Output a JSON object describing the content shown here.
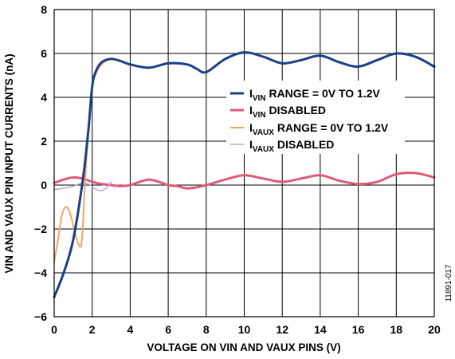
{
  "chart_data": {
    "type": "line",
    "xlabel": "VOLTAGE ON VIN AND VAUX PINS (V)",
    "ylabel": "VIN AND VAUX PIN INPUT CURRENTS (nA)",
    "xlim": [
      0,
      20
    ],
    "ylim": [
      -6,
      8
    ],
    "x_ticks": [
      "0",
      "2",
      "4",
      "6",
      "8",
      "10",
      "12",
      "14",
      "16",
      "18",
      "20"
    ],
    "y_ticks": [
      "−6",
      "−4",
      "−2",
      "0",
      "2",
      "4",
      "6",
      "8"
    ],
    "grid": true,
    "legend_position": "right",
    "figure_id": "11891-017",
    "series": [
      {
        "name": "I_VIN RANGE = 0V TO 1.2V",
        "legend": {
          "main": "I",
          "sub": "VIN",
          "rest": " RANGE = 0V TO 1.2V"
        },
        "color": "#1b3f86",
        "x": [
          0,
          0.5,
          1.0,
          1.5,
          1.8,
          2.0,
          2.2,
          2.5,
          3.0,
          3.5,
          4.0,
          5.0,
          6.0,
          7.0,
          7.5,
          8.0,
          9.0,
          10.0,
          11.0,
          12.0,
          13.0,
          14.0,
          15.0,
          16.0,
          17.0,
          18.0,
          19.0,
          20.0
        ],
        "y": [
          -5.1,
          -4.0,
          -2.5,
          0.2,
          2.5,
          4.5,
          5.2,
          5.6,
          5.75,
          5.65,
          5.5,
          5.35,
          5.55,
          5.5,
          5.3,
          5.15,
          5.75,
          6.05,
          5.85,
          5.55,
          5.7,
          5.9,
          5.6,
          5.4,
          5.7,
          6.0,
          5.85,
          5.4
        ]
      },
      {
        "name": "I_VIN DISABLED",
        "legend": {
          "main": "I",
          "sub": "VIN",
          "rest": " DISABLED"
        },
        "color": "#e05a78",
        "x": [
          0,
          0.5,
          1.0,
          1.5,
          2.0,
          2.5,
          3.0,
          3.5,
          4.0,
          4.5,
          5.0,
          5.5,
          6.0,
          6.5,
          7.0,
          7.5,
          8.0,
          9.0,
          10.0,
          11.0,
          12.0,
          13.0,
          14.0,
          15.0,
          16.0,
          17.0,
          18.0,
          19.0,
          20.0
        ],
        "y": [
          0.1,
          0.25,
          0.35,
          0.3,
          0.15,
          0.05,
          0.0,
          -0.05,
          0.0,
          0.15,
          0.25,
          0.15,
          0.0,
          -0.05,
          -0.15,
          -0.1,
          0.0,
          0.25,
          0.45,
          0.3,
          0.15,
          0.3,
          0.45,
          0.2,
          0.05,
          0.15,
          0.5,
          0.55,
          0.35
        ]
      },
      {
        "name": "I_VAUX RANGE = 0V TO 1.2V",
        "legend": {
          "main": "I",
          "sub": "VAUX",
          "rest": " RANGE = 0V TO 1.2V"
        },
        "color": "#f6a36c",
        "x": [
          0,
          0.2,
          0.4,
          0.6,
          0.8,
          1.0,
          1.2,
          1.4,
          1.5,
          1.6,
          1.8,
          2.0,
          2.2,
          2.5,
          2.8
        ],
        "y": [
          -3.5,
          -2.5,
          -1.4,
          -1.0,
          -1.2,
          -1.8,
          -2.5,
          -2.8,
          -2.0,
          -0.2,
          2.5,
          4.4,
          5.1,
          5.5,
          5.7
        ]
      },
      {
        "name": "I_VAUX DISABLED",
        "legend": {
          "main": "I",
          "sub": "VAUX",
          "rest": " DISABLED"
        },
        "color": "#b7aad6",
        "x": [
          0,
          0.5,
          1.0,
          1.3,
          1.6,
          1.9,
          2.2,
          2.5,
          2.8,
          3.0
        ],
        "y": [
          -0.2,
          -0.15,
          -0.05,
          0.05,
          0.1,
          0.0,
          -0.2,
          -0.25,
          -0.1,
          0.15
        ]
      }
    ]
  }
}
